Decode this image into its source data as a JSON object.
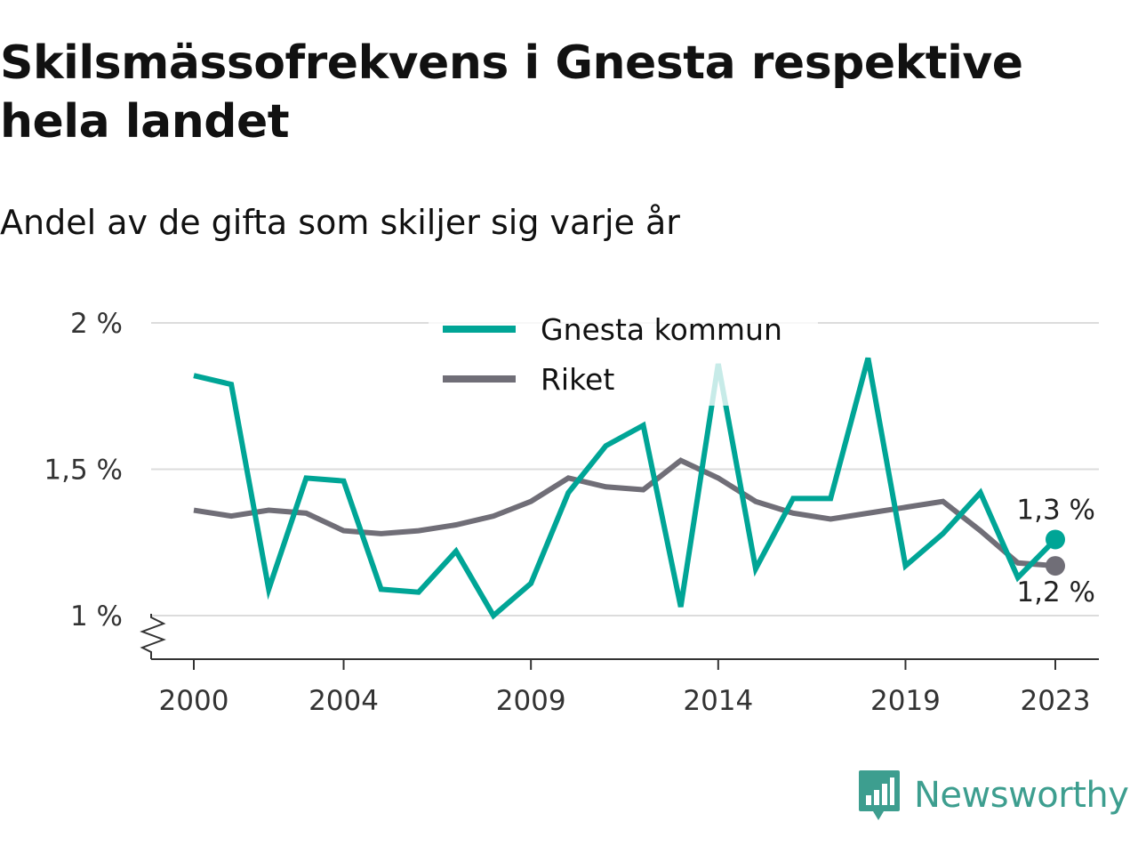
{
  "title": "Skilsmässofrekvens i Gnesta respektive hela landet",
  "subtitle": "Andel av de gifta som skiljer sig varje år",
  "brand": {
    "name": "Newsworthy",
    "icon": "newsworthy-logo-icon",
    "color": "#3d9e8f"
  },
  "chart_data": {
    "type": "line",
    "x": [
      2000,
      2001,
      2002,
      2003,
      2004,
      2005,
      2006,
      2007,
      2008,
      2009,
      2010,
      2011,
      2012,
      2013,
      2014,
      2015,
      2016,
      2017,
      2018,
      2019,
      2020,
      2021,
      2022,
      2023
    ],
    "series": [
      {
        "name": "Gnesta kommun",
        "color": "#00a596",
        "values": [
          1.82,
          1.79,
          1.09,
          1.47,
          1.46,
          1.09,
          1.08,
          1.22,
          1.0,
          1.11,
          1.42,
          1.58,
          1.65,
          1.03,
          1.86,
          1.16,
          1.4,
          1.4,
          1.88,
          1.17,
          1.28,
          1.42,
          1.13,
          1.26
        ]
      },
      {
        "name": "Riket",
        "color": "#706e77",
        "values": [
          1.36,
          1.34,
          1.36,
          1.35,
          1.29,
          1.28,
          1.29,
          1.31,
          1.34,
          1.39,
          1.47,
          1.44,
          1.43,
          1.53,
          1.47,
          1.39,
          1.35,
          1.33,
          1.35,
          1.37,
          1.39,
          1.29,
          1.18,
          1.17
        ]
      }
    ],
    "y_ticks": [
      "1 %",
      "1,5 %",
      "2 %"
    ],
    "y_tick_values": [
      1,
      1.5,
      2
    ],
    "x_ticks": [
      "2000",
      "2004",
      "2009",
      "2014",
      "2019",
      "2023"
    ],
    "x_tick_values": [
      2000,
      2004,
      2009,
      2014,
      2019,
      2023
    ],
    "ylim": [
      0.86,
      2.0
    ],
    "xlim": [
      2000,
      2023
    ],
    "end_labels": {
      "Gnesta kommun": "1,3 %",
      "Riket": "1,2 %"
    },
    "axis_break": true,
    "grid": true,
    "legend_position": "top"
  }
}
